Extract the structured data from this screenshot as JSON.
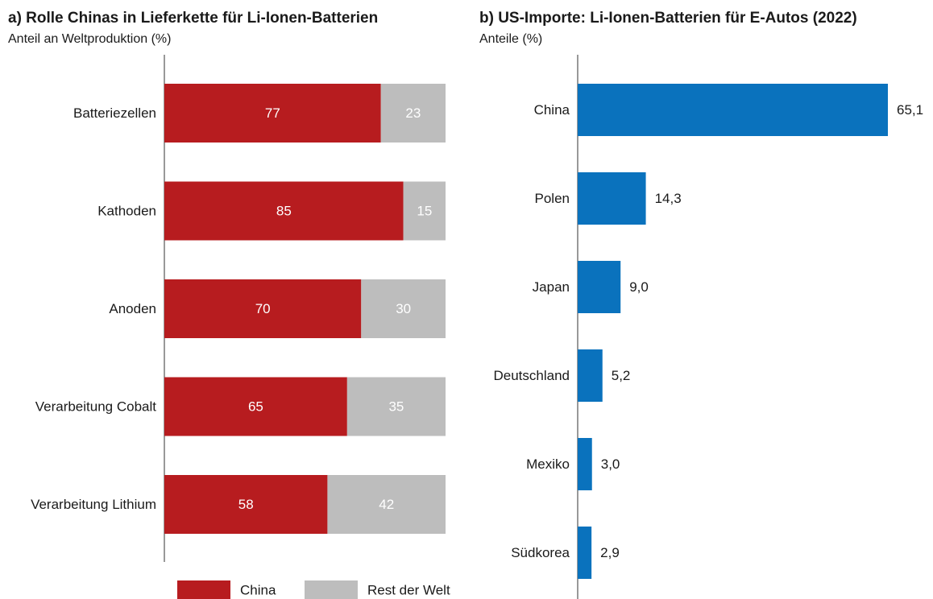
{
  "charts": [
    {
      "id": "a",
      "title": "a) Rolle Chinas in Lieferkette für Li-Ionen-Batterien",
      "subtitle": "Anteil an Weltproduktion (%)"
    },
    {
      "id": "b",
      "title": "b) US-Importe: Li-Ionen-Batterien für E-Autos (2022)",
      "subtitle": "Anteile (%)"
    }
  ],
  "chart_data": [
    {
      "type": "bar",
      "orientation": "horizontal",
      "stacked": true,
      "title": "a) Rolle Chinas in Lieferkette für Li-Ionen-Batterien",
      "ylabel": "Anteil an Weltproduktion (%)",
      "categories": [
        "Batteriezellen",
        "Kathoden",
        "Anoden",
        "Verarbeitung Cobalt",
        "Verarbeitung Lithium"
      ],
      "series": [
        {
          "name": "China",
          "values": [
            77,
            85,
            70,
            65,
            58
          ],
          "color": "#b71c1f",
          "labels": [
            "77",
            "85",
            "70",
            "65",
            "58"
          ]
        },
        {
          "name": "Rest der Welt",
          "values": [
            23,
            15,
            30,
            35,
            42
          ],
          "color": "#bdbdbd",
          "labels": [
            "23",
            "15",
            "30",
            "35",
            "42"
          ]
        }
      ],
      "xlim": [
        0,
        100
      ],
      "legend": "bottom"
    },
    {
      "type": "bar",
      "orientation": "horizontal",
      "title": "b) US-Importe: Li-Ionen-Batterien für E-Autos (2022)",
      "ylabel": "Anteile (%)",
      "categories": [
        "China",
        "Polen",
        "Japan",
        "Deutschland",
        "Mexiko",
        "Südkorea"
      ],
      "values": [
        65.1,
        14.3,
        9.0,
        5.2,
        3.0,
        2.9
      ],
      "labels": [
        "65,1",
        "14,3",
        "9,0",
        "5,2",
        "3,0",
        "2,9"
      ],
      "color": "#0a72bd",
      "xlim": [
        0,
        65.1
      ]
    }
  ]
}
